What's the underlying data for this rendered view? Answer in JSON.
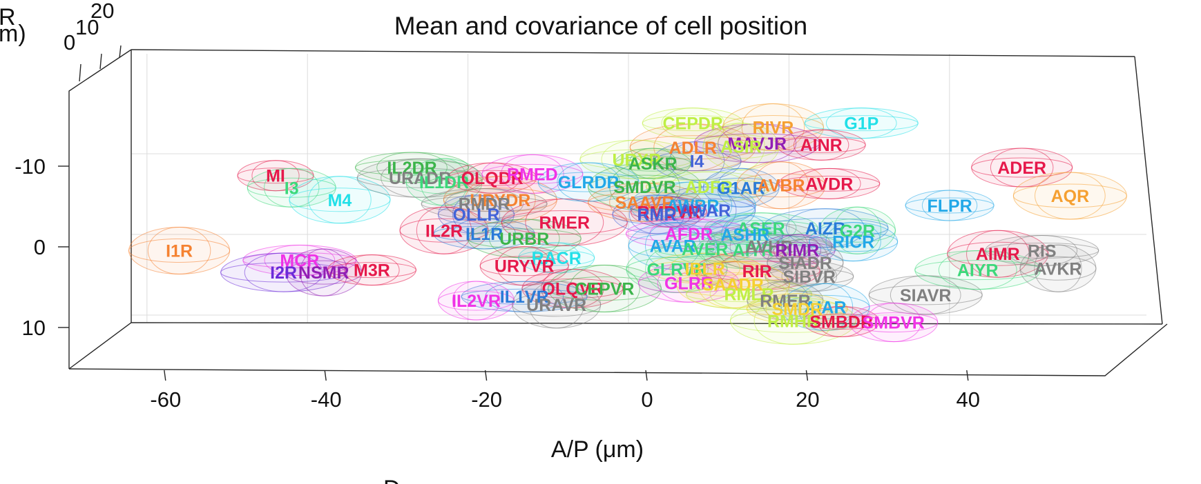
{
  "chart_data": {
    "type": "scatter",
    "title": "Mean and covariance of cell position",
    "xlabel": "A/P (μm)",
    "ylabel_fragment": "m)",
    "zlabel_fragment": "R",
    "bottom_label_fragment": "D",
    "xlim": [
      -72,
      57
    ],
    "ylim": [
      15,
      -20
    ],
    "x_ticks": [
      -60,
      -40,
      -20,
      0,
      20,
      40
    ],
    "x_tick_labels": [
      "-60",
      "-40",
      "-20",
      "0",
      "20",
      "40"
    ],
    "y_ticks": [
      -10,
      0,
      10
    ],
    "y_tick_labels": [
      "-10",
      "0",
      "10"
    ],
    "z_ticks": [
      0,
      10,
      20
    ],
    "z_tick_labels": [
      "0",
      "10",
      "20"
    ],
    "grid": true,
    "cells": [
      {
        "label": "MI",
        "x": -50,
        "y": -9,
        "color": "#e6194b"
      },
      {
        "label": "I3",
        "x": -48,
        "y": -7.5,
        "color": "#3cd87a"
      },
      {
        "label": "M4",
        "x": -42,
        "y": -6,
        "color": "#22e0e8"
      },
      {
        "label": "IL2DR",
        "x": -33,
        "y": -10,
        "color": "#3cb44b"
      },
      {
        "label": "URADR",
        "x": -32,
        "y": -8.7,
        "color": "#808080"
      },
      {
        "label": "IL1DR",
        "x": -29,
        "y": -8.2,
        "color": "#3cd87a"
      },
      {
        "label": "OLQDR",
        "x": -23,
        "y": -8.7,
        "color": "#e6194b"
      },
      {
        "label": "RMED",
        "x": -18,
        "y": -9.2,
        "color": "#f032e6"
      },
      {
        "label": "URYDR",
        "x": -22,
        "y": -6,
        "color": "#f58231"
      },
      {
        "label": "RMDR",
        "x": -24,
        "y": -5.5,
        "color": "#808080"
      },
      {
        "label": "OLLR",
        "x": -25,
        "y": -4.2,
        "color": "#4363d8"
      },
      {
        "label": "IL2R",
        "x": -29,
        "y": -2.2,
        "color": "#e6194b"
      },
      {
        "label": "IL1R",
        "x": -24,
        "y": -1.8,
        "color": "#2a7bd8"
      },
      {
        "label": "URBR",
        "x": -19,
        "y": -1.2,
        "color": "#3cb44b"
      },
      {
        "label": "RMER",
        "x": -14,
        "y": -3.2,
        "color": "#e6194b"
      },
      {
        "label": "RACR",
        "x": -15,
        "y": 1.2,
        "color": "#22e0e8"
      },
      {
        "label": "URYVR",
        "x": -19,
        "y": 2.2,
        "color": "#e6194b"
      },
      {
        "label": "I1R",
        "x": -62,
        "y": 0.3,
        "color": "#f58231"
      },
      {
        "label": "MCR",
        "x": -47,
        "y": 1.5,
        "color": "#f032e6"
      },
      {
        "label": "I2R",
        "x": -49,
        "y": 3,
        "color": "#6b2bd8"
      },
      {
        "label": "NSMR",
        "x": -44,
        "y": 3,
        "color": "#911eb4"
      },
      {
        "label": "M3R",
        "x": -38,
        "y": 2.7,
        "color": "#e6194b"
      },
      {
        "label": "OLQVR",
        "x": -13,
        "y": 5,
        "color": "#e6194b"
      },
      {
        "label": "CEPVR",
        "x": -9,
        "y": 5,
        "color": "#3cb44b"
      },
      {
        "label": "IL1VR",
        "x": -19,
        "y": 6,
        "color": "#2a7bd8"
      },
      {
        "label": "IL2VR",
        "x": -25,
        "y": 6.5,
        "color": "#f032e6"
      },
      {
        "label": "URAVR",
        "x": -15,
        "y": 7,
        "color": "#808080"
      },
      {
        "label": "CEPDR",
        "x": 2,
        "y": -15.5,
        "color": "#bfef45"
      },
      {
        "label": "URXR",
        "x": -5,
        "y": -11,
        "color": "#bfef45"
      },
      {
        "label": "ADLR",
        "x": 2,
        "y": -12.5,
        "color": "#f58231"
      },
      {
        "label": "ASKR",
        "x": -3,
        "y": -10.5,
        "color": "#3cb44b"
      },
      {
        "label": "I4",
        "x": 2.5,
        "y": -10.8,
        "color": "#4363d8"
      },
      {
        "label": "RIVR",
        "x": 12,
        "y": -15,
        "color": "#f5a031"
      },
      {
        "label": "G1P",
        "x": 23,
        "y": -15.5,
        "color": "#22e0e8"
      },
      {
        "label": "MAVJR",
        "x": 10,
        "y": -13,
        "color": "#911eb4"
      },
      {
        "label": "ASIR",
        "x": 8,
        "y": -12.6,
        "color": "#bfef45"
      },
      {
        "label": "AINR",
        "x": 18,
        "y": -12.8,
        "color": "#e6194b"
      },
      {
        "label": "GLRDR",
        "x": -11,
        "y": -8.2,
        "color": "#22a8e8"
      },
      {
        "label": "SMDVR",
        "x": -4,
        "y": -7.6,
        "color": "#3cb44b"
      },
      {
        "label": "ADFR",
        "x": 4,
        "y": -7.6,
        "color": "#bfef45"
      },
      {
        "label": "G1AR",
        "x": 8,
        "y": -7.5,
        "color": "#2a7bd8"
      },
      {
        "label": "AVBR",
        "x": 13,
        "y": -7.8,
        "color": "#f58231"
      },
      {
        "label": "AVDR",
        "x": 19,
        "y": -8,
        "color": "#e6194b"
      },
      {
        "label": "SAAVR",
        "x": -4,
        "y": -5.7,
        "color": "#f58231"
      },
      {
        "label": "AWBR",
        "x": 2,
        "y": -5.3,
        "color": "#22a8e8"
      },
      {
        "label": "RMDVR",
        "x": -1,
        "y": -4.5,
        "color": "#e6194b"
      },
      {
        "label": "RMR",
        "x": -2.5,
        "y": -4.2,
        "color": "#4363d8"
      },
      {
        "label": "AWAR",
        "x": 3.5,
        "y": -4.7,
        "color": "#4363d8"
      },
      {
        "label": "ASER",
        "x": 10.5,
        "y": -2.5,
        "color": "#3cd87a"
      },
      {
        "label": "AIZR",
        "x": 18.5,
        "y": -2.5,
        "color": "#2a7bd8"
      },
      {
        "label": "G2R",
        "x": 22.5,
        "y": -2.2,
        "color": "#3cd87a"
      },
      {
        "label": "FLPR",
        "x": 34,
        "y": -5.3,
        "color": "#22a8e8"
      },
      {
        "label": "ADER",
        "x": 43,
        "y": -10,
        "color": "#e6194b"
      },
      {
        "label": "AQR",
        "x": 49,
        "y": -6.5,
        "color": "#f5a031"
      },
      {
        "label": "AFDR",
        "x": 1.5,
        "y": -1.8,
        "color": "#f032e6"
      },
      {
        "label": "ASHR",
        "x": 8.5,
        "y": -1.7,
        "color": "#22a8e8"
      },
      {
        "label": "AVAR",
        "x": -0.5,
        "y": -0.3,
        "color": "#22a8e8"
      },
      {
        "label": "AVER",
        "x": 3.5,
        "y": 0.1,
        "color": "#3cd87a"
      },
      {
        "label": "AIYR",
        "x": 9.5,
        "y": 0.2,
        "color": "#3cd87a"
      },
      {
        "label": "AVHR",
        "x": 11.5,
        "y": -0.2,
        "color": "#808080"
      },
      {
        "label": "RIMR",
        "x": 15,
        "y": 0.2,
        "color": "#911eb4"
      },
      {
        "label": "RICR",
        "x": 22,
        "y": -0.8,
        "color": "#22a8e8"
      },
      {
        "label": "GLRVR",
        "x": 0,
        "y": 2.6,
        "color": "#3cd87a"
      },
      {
        "label": "IBLR",
        "x": 3.5,
        "y": 2.5,
        "color": "#f5d031"
      },
      {
        "label": "RIR",
        "x": 10,
        "y": 2.8,
        "color": "#e6194b"
      },
      {
        "label": "SIADR",
        "x": 16,
        "y": 1.8,
        "color": "#808080"
      },
      {
        "label": "SIBVR",
        "x": 16.5,
        "y": 3.5,
        "color": "#808080"
      },
      {
        "label": "GLRR",
        "x": 1.5,
        "y": 4.3,
        "color": "#f032e6"
      },
      {
        "label": "SAADR",
        "x": 7,
        "y": 4.5,
        "color": "#f5d031"
      },
      {
        "label": "RMLR",
        "x": 9,
        "y": 5.7,
        "color": "#bfef45"
      },
      {
        "label": "RMER",
        "x": 13.5,
        "y": 6.5,
        "color": "#808080"
      },
      {
        "label": "AIAR",
        "x": 18.5,
        "y": 7.3,
        "color": "#22a8e8"
      },
      {
        "label": "SMDR",
        "x": 15,
        "y": 7.5,
        "color": "#f5d031"
      },
      {
        "label": "SIAVR",
        "x": 31,
        "y": 5.8,
        "color": "#808080"
      },
      {
        "label": "RMHR",
        "x": 14.5,
        "y": 9,
        "color": "#bfef45"
      },
      {
        "label": "SMBDR",
        "x": 20.5,
        "y": 9.1,
        "color": "#e6194b"
      },
      {
        "label": "SMBVR",
        "x": 27,
        "y": 9.2,
        "color": "#f032e6"
      },
      {
        "label": "AIMR",
        "x": 40,
        "y": 0.7,
        "color": "#e6194b"
      },
      {
        "label": "RIS",
        "x": 45.5,
        "y": 0.3,
        "color": "#808080"
      },
      {
        "label": "AIYR",
        "x": 37.5,
        "y": 2.7,
        "color": "#3cd87a"
      },
      {
        "label": "AVKR",
        "x": 47.5,
        "y": 2.5,
        "color": "#808080"
      }
    ]
  }
}
